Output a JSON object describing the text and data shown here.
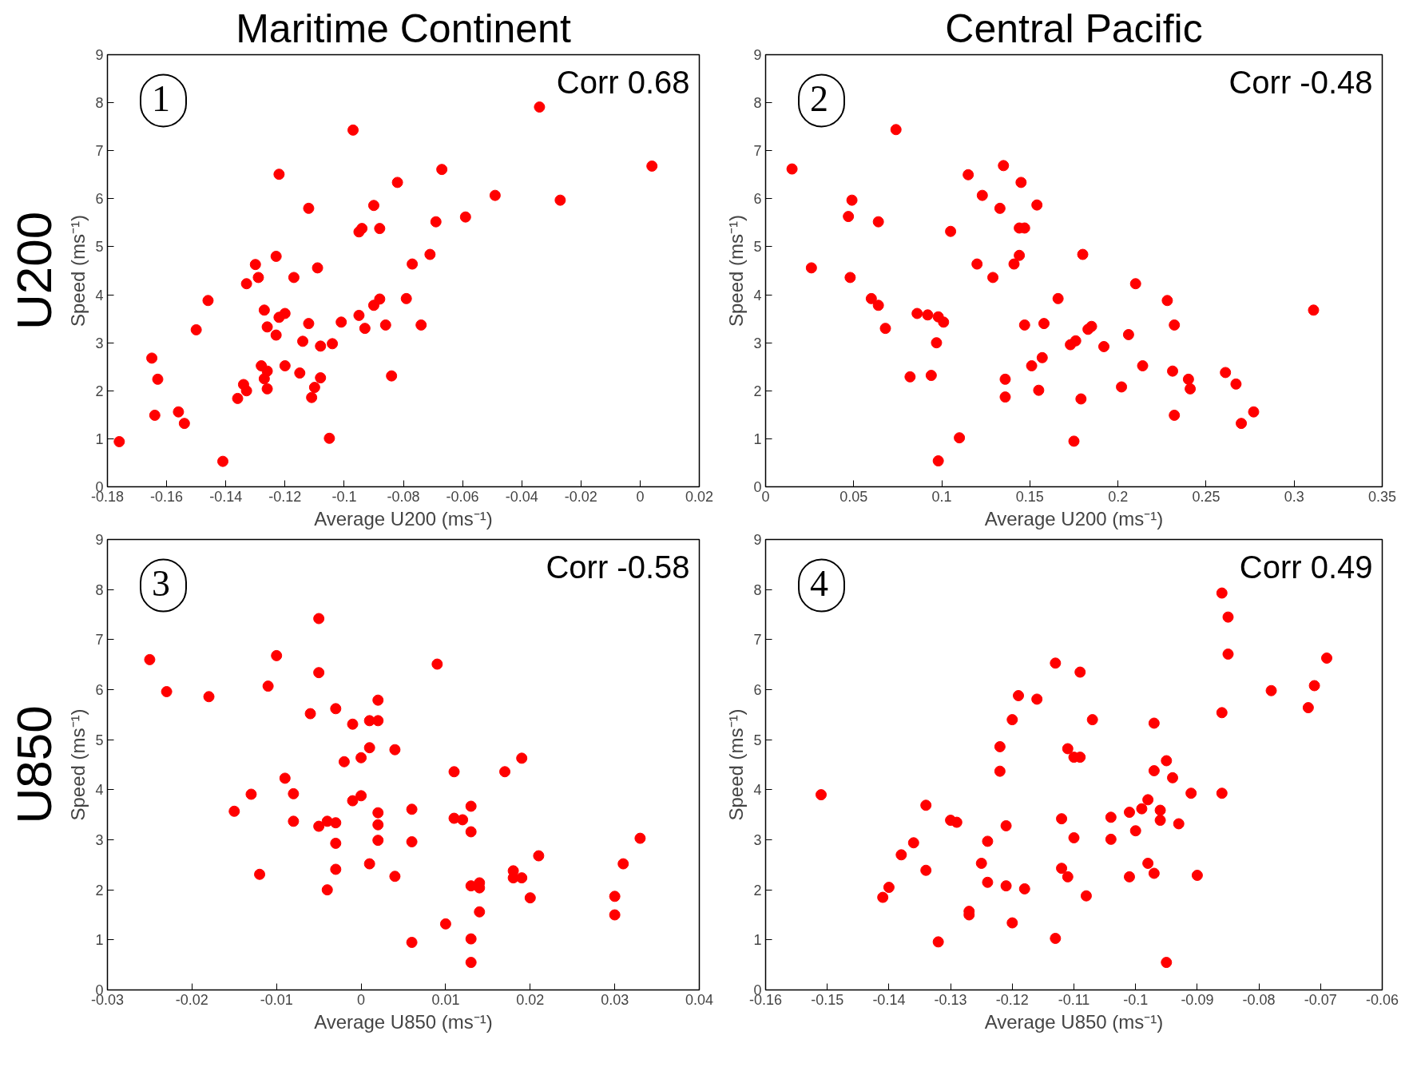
{
  "chart_data": [
    {
      "type": "scatter",
      "title": "Maritime Continent",
      "xlabel": "Average U200 (ms⁻¹)",
      "ylabel": "Speed (ms⁻¹)",
      "annotations": [
        "1",
        "Corr 0.68",
        "U200"
      ],
      "marker": "circle",
      "grid": false,
      "xlim": [
        -0.18,
        0.02
      ],
      "xticks": [
        -0.18,
        -0.16,
        -0.14,
        -0.12,
        -0.1,
        -0.08,
        -0.06,
        -0.04,
        -0.02,
        0,
        0.02
      ],
      "ylim": [
        0,
        9
      ],
      "yticks": [
        0,
        1,
        2,
        3,
        4,
        5,
        6,
        7,
        8,
        9
      ],
      "series": [
        {
          "color": "#ff0000",
          "x": [
            -0.176,
            -0.165,
            -0.164,
            -0.163,
            -0.156,
            -0.154,
            -0.15,
            -0.146,
            -0.141,
            -0.136,
            -0.134,
            -0.133,
            -0.133,
            -0.13,
            -0.129,
            -0.128,
            -0.127,
            -0.127,
            -0.126,
            -0.126,
            -0.126,
            -0.123,
            -0.123,
            -0.122,
            -0.122,
            -0.12,
            -0.12,
            -0.117,
            -0.115,
            -0.114,
            -0.112,
            -0.112,
            -0.111,
            -0.11,
            -0.109,
            -0.108,
            -0.108,
            -0.105,
            -0.104,
            -0.101,
            -0.097,
            -0.095,
            -0.094,
            -0.095,
            -0.093,
            -0.09,
            -0.09,
            -0.088,
            -0.088,
            -0.086,
            -0.084,
            -0.082,
            -0.079,
            -0.077,
            -0.074,
            -0.071,
            -0.069,
            -0.067,
            -0.059,
            -0.049,
            -0.034,
            -0.027,
            0.004
          ],
          "values": [
            0.94,
            2.68,
            1.49,
            2.24,
            1.56,
            1.32,
            3.27,
            3.88,
            0.53,
            1.84,
            2.13,
            2.0,
            4.23,
            4.63,
            4.36,
            2.52,
            3.68,
            2.25,
            2.41,
            3.33,
            2.04,
            4.8,
            3.16,
            6.51,
            3.53,
            3.61,
            2.52,
            4.36,
            2.37,
            3.03,
            5.8,
            3.4,
            1.86,
            2.07,
            4.56,
            2.93,
            2.27,
            1.01,
            2.98,
            3.43,
            7.43,
            5.31,
            5.38,
            3.57,
            3.3,
            5.86,
            3.78,
            3.91,
            5.38,
            3.37,
            2.31,
            6.34,
            3.92,
            4.64,
            3.37,
            4.84,
            5.52,
            6.61,
            5.62,
            6.07,
            7.91,
            5.97,
            6.68
          ]
        }
      ]
    },
    {
      "type": "scatter",
      "title": "Central Pacific",
      "xlabel": "Average U200 (ms⁻¹)",
      "ylabel": "Speed (ms⁻¹)",
      "annotations": [
        "2",
        "Corr -0.48"
      ],
      "marker": "circle",
      "grid": false,
      "xlim": [
        0,
        0.35
      ],
      "xticks": [
        0,
        0.05,
        0.1,
        0.15,
        0.2,
        0.25,
        0.3,
        0.35
      ],
      "ylim": [
        0,
        9
      ],
      "yticks": [
        0,
        1,
        2,
        3,
        4,
        5,
        6,
        7,
        8,
        9
      ],
      "series": [
        {
          "color": "#ff0000",
          "x": [
            0.015,
            0.026,
            0.047,
            0.049,
            0.048,
            0.064,
            0.06,
            0.064,
            0.068,
            0.074,
            0.082,
            0.086,
            0.092,
            0.094,
            0.098,
            0.101,
            0.097,
            0.098,
            0.105,
            0.11,
            0.115,
            0.12,
            0.123,
            0.129,
            0.133,
            0.135,
            0.136,
            0.136,
            0.141,
            0.144,
            0.145,
            0.144,
            0.147,
            0.147,
            0.151,
            0.154,
            0.155,
            0.157,
            0.158,
            0.166,
            0.173,
            0.175,
            0.176,
            0.179,
            0.18,
            0.183,
            0.185,
            0.192,
            0.202,
            0.206,
            0.21,
            0.214,
            0.228,
            0.231,
            0.232,
            0.232,
            0.24,
            0.241,
            0.261,
            0.267,
            0.27,
            0.277,
            0.311
          ],
          "values": [
            6.62,
            4.56,
            5.63,
            5.97,
            4.36,
            5.52,
            3.92,
            3.78,
            3.3,
            7.44,
            2.29,
            3.61,
            3.58,
            2.32,
            3.54,
            3.43,
            3.0,
            0.54,
            5.32,
            1.02,
            6.5,
            4.64,
            6.07,
            4.36,
            5.8,
            6.69,
            2.24,
            1.87,
            4.64,
            4.82,
            6.34,
            5.39,
            5.39,
            3.37,
            2.52,
            5.87,
            2.01,
            2.69,
            3.4,
            3.92,
            2.96,
            0.95,
            3.04,
            1.83,
            4.84,
            3.28,
            3.34,
            2.92,
            2.08,
            3.17,
            4.23,
            2.52,
            3.88,
            2.41,
            3.37,
            1.49,
            2.24,
            2.04,
            2.38,
            2.14,
            1.32,
            1.56,
            3.68
          ]
        }
      ]
    },
    {
      "type": "scatter",
      "xlabel": "Average U850 (ms⁻¹)",
      "ylabel": "Speed (ms⁻¹)",
      "annotations": [
        "3",
        "Corr -0.58",
        "U850"
      ],
      "marker": "circle",
      "grid": false,
      "xlim": [
        -0.03,
        0.04
      ],
      "xticks": [
        -0.03,
        -0.02,
        -0.01,
        0,
        0.01,
        0.02,
        0.03,
        0.04
      ],
      "ylim": [
        0,
        9
      ],
      "yticks": [
        0,
        1,
        2,
        3,
        4,
        5,
        6,
        7,
        8,
        9
      ],
      "series": [
        {
          "color": "#ff0000",
          "x": [
            -0.025,
            -0.023,
            -0.018,
            -0.015,
            -0.013,
            -0.012,
            -0.011,
            -0.01,
            -0.009,
            -0.008,
            -0.008,
            -0.006,
            -0.005,
            -0.005,
            -0.005,
            -0.004,
            -0.004,
            -0.003,
            -0.003,
            -0.003,
            -0.003,
            -0.002,
            -0.001,
            -0.001,
            0.0,
            0.0,
            0.001,
            0.001,
            0.001,
            0.002,
            0.002,
            0.002,
            0.002,
            0.002,
            0.004,
            0.004,
            0.006,
            0.006,
            0.006,
            0.009,
            0.01,
            0.011,
            0.011,
            0.012,
            0.013,
            0.013,
            0.013,
            0.013,
            0.013,
            0.014,
            0.014,
            0.014,
            0.017,
            0.018,
            0.018,
            0.019,
            0.019,
            0.02,
            0.021,
            0.03,
            0.03,
            0.031,
            0.033
          ],
          "values": [
            6.6,
            5.96,
            5.86,
            3.57,
            3.91,
            2.31,
            6.07,
            6.68,
            4.23,
            3.92,
            3.37,
            5.52,
            7.42,
            6.34,
            3.27,
            3.37,
            2.0,
            5.62,
            3.34,
            2.93,
            2.41,
            4.56,
            5.31,
            3.78,
            4.64,
            3.88,
            5.38,
            4.84,
            2.52,
            5.79,
            5.38,
            3.54,
            3.3,
            2.99,
            4.8,
            2.27,
            3.61,
            2.96,
            0.95,
            6.51,
            1.32,
            4.36,
            3.43,
            3.4,
            3.67,
            3.16,
            2.08,
            1.02,
            0.55,
            2.14,
            2.04,
            1.56,
            4.36,
            2.38,
            2.24,
            4.63,
            2.24,
            1.84,
            2.68,
            1.87,
            1.5,
            2.52,
            3.03
          ]
        }
      ]
    },
    {
      "type": "scatter",
      "xlabel": "Average U850 (ms⁻¹)",
      "ylabel": "Speed (ms⁻¹)",
      "annotations": [
        "4",
        "Corr 0.49"
      ],
      "marker": "circle",
      "grid": false,
      "xlim": [
        -0.16,
        -0.06
      ],
      "xticks": [
        -0.16,
        -0.15,
        -0.14,
        -0.13,
        -0.12,
        -0.11,
        -0.1,
        -0.09,
        -0.08,
        -0.07,
        -0.06
      ],
      "ylim": [
        0,
        9
      ],
      "yticks": [
        0,
        1,
        2,
        3,
        4,
        5,
        6,
        7,
        8,
        9
      ],
      "series": [
        {
          "color": "#ff0000",
          "x": [
            -0.151,
            -0.141,
            -0.14,
            -0.138,
            -0.136,
            -0.134,
            -0.134,
            -0.132,
            -0.13,
            -0.129,
            -0.127,
            -0.127,
            -0.125,
            -0.124,
            -0.124,
            -0.122,
            -0.122,
            -0.121,
            -0.121,
            -0.12,
            -0.12,
            -0.119,
            -0.118,
            -0.116,
            -0.113,
            -0.113,
            -0.112,
            -0.112,
            -0.111,
            -0.111,
            -0.11,
            -0.11,
            -0.109,
            -0.109,
            -0.108,
            -0.107,
            -0.104,
            -0.104,
            -0.101,
            -0.101,
            -0.1,
            -0.099,
            -0.098,
            -0.098,
            -0.097,
            -0.097,
            -0.097,
            -0.096,
            -0.096,
            -0.095,
            -0.095,
            -0.094,
            -0.093,
            -0.091,
            -0.09,
            -0.086,
            -0.086,
            -0.086,
            -0.085,
            -0.085,
            -0.078,
            -0.072,
            -0.071,
            -0.069
          ],
          "values": [
            3.9,
            1.85,
            2.05,
            2.7,
            2.94,
            3.69,
            2.39,
            0.96,
            3.39,
            3.35,
            1.57,
            1.5,
            2.53,
            2.97,
            2.15,
            4.86,
            4.37,
            3.28,
            2.08,
            5.4,
            1.34,
            5.88,
            2.02,
            5.81,
            6.53,
            1.03,
            3.42,
            2.43,
            4.82,
            2.26,
            4.65,
            3.04,
            4.65,
            6.35,
            1.88,
            5.4,
            3.45,
            3.01,
            3.55,
            2.26,
            3.18,
            3.62,
            3.8,
            2.53,
            5.33,
            4.38,
            2.33,
            3.59,
            3.39,
            4.58,
            0.55,
            4.24,
            3.32,
            3.93,
            2.29,
            7.93,
            5.54,
            3.93,
            7.45,
            6.71,
            5.98,
            5.64,
            6.08,
            6.63
          ]
        }
      ]
    }
  ]
}
